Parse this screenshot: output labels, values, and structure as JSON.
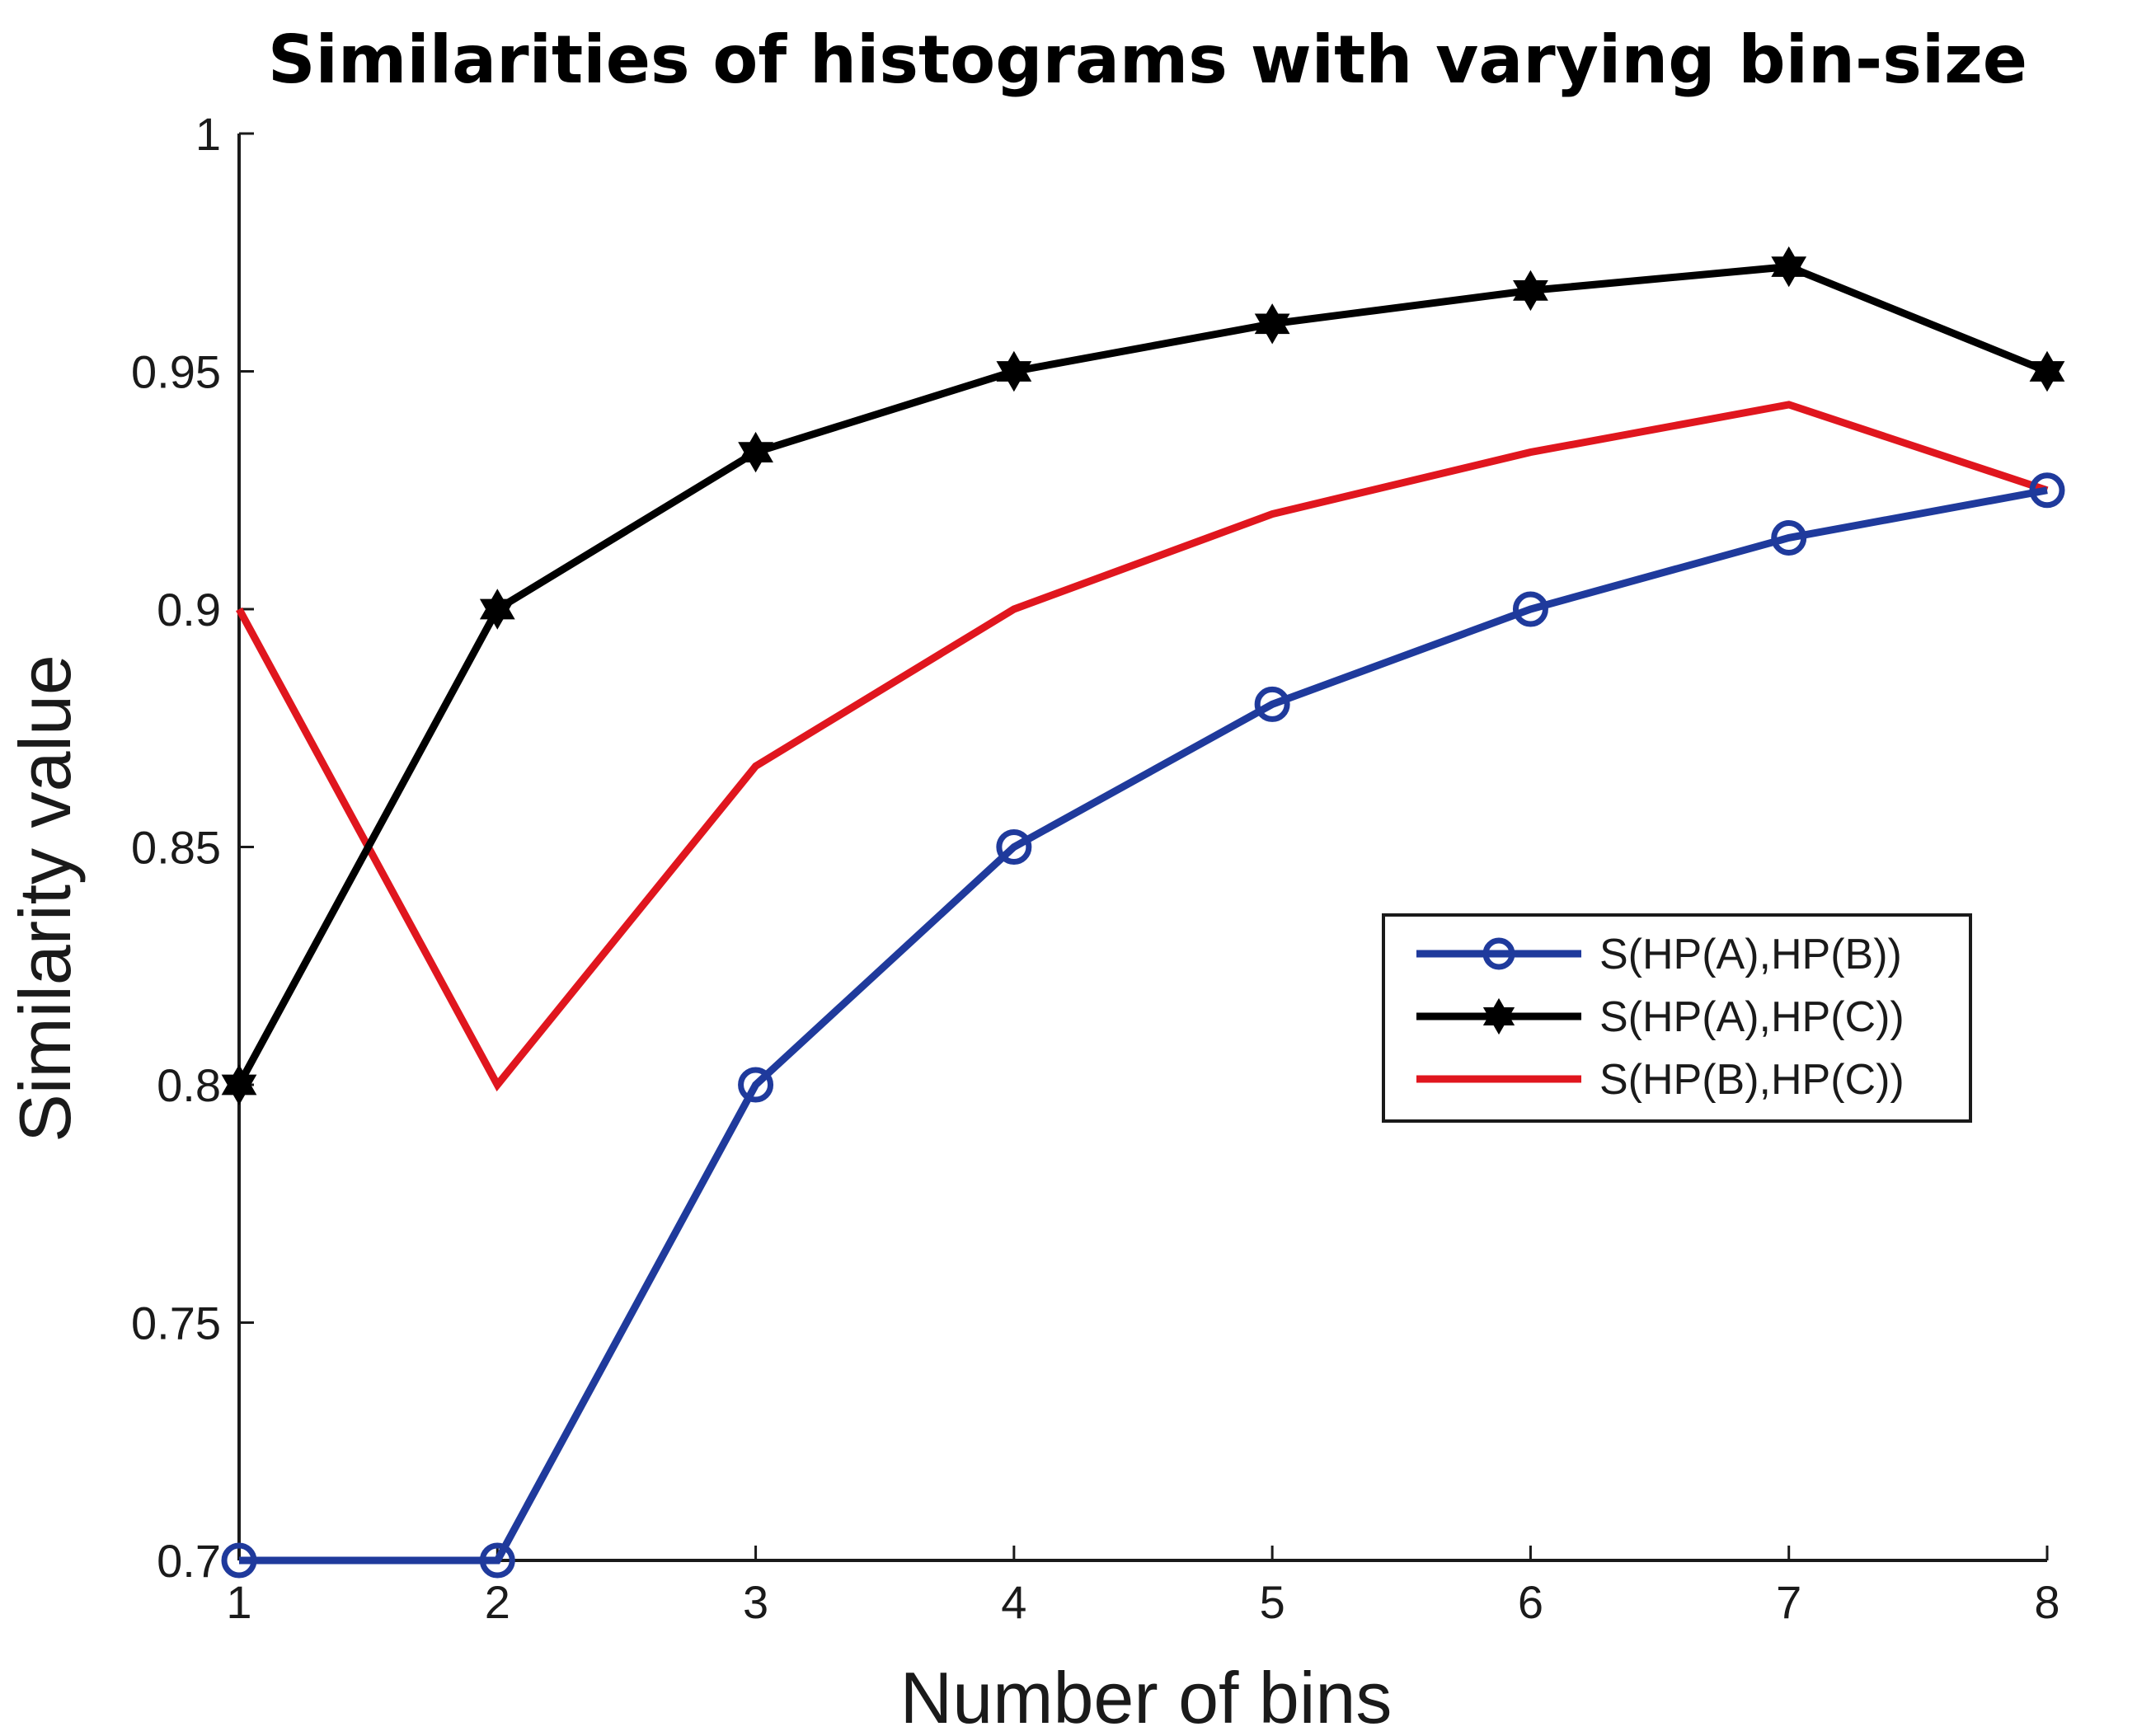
{
  "chart_data": {
    "type": "line",
    "title": "Similarities of histograms with varying bin-size",
    "xlabel": "Number of bins",
    "ylabel": "Similarity value",
    "x": [
      1,
      2,
      3,
      4,
      5,
      6,
      7,
      8
    ],
    "xlim": [
      1,
      8
    ],
    "ylim": [
      0.7,
      1
    ],
    "xticks": [
      "1",
      "2",
      "3",
      "4",
      "5",
      "6",
      "7",
      "8"
    ],
    "yticks": [
      "0.7",
      "0.75",
      "0.8",
      "0.85",
      "0.9",
      "0.95",
      "1"
    ],
    "grid": false,
    "legend_position": "center-right",
    "series": [
      {
        "name": "S(HP(A),HP(B))",
        "color": "#1f3a9c",
        "marker": "circle",
        "values": [
          0.7,
          0.7,
          0.8,
          0.85,
          0.88,
          0.9,
          0.915,
          0.925
        ]
      },
      {
        "name": "S(HP(A),HP(C))",
        "color": "#000000",
        "marker": "star",
        "values": [
          0.8,
          0.9,
          0.933,
          0.95,
          0.96,
          0.967,
          0.972,
          0.95
        ]
      },
      {
        "name": "S(HP(B),HP(C))",
        "color": "#e0161e",
        "marker": "none",
        "values": [
          0.9,
          0.8,
          0.867,
          0.9,
          0.92,
          0.933,
          0.943,
          0.925
        ]
      }
    ]
  }
}
